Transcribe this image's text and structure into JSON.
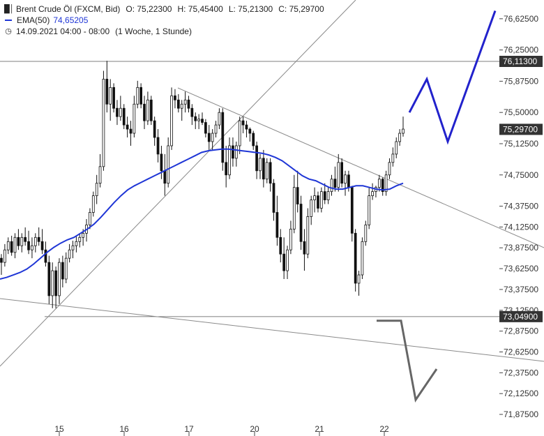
{
  "header": {
    "instrument": "Brent Crude Öl (FXCM, Bid)",
    "open": "O: 75,22300",
    "high": "H: 75,45400",
    "low": "L: 75,21300",
    "close": "C: 75,29700",
    "ema_label": "EMA(50)",
    "ema_value": "74,65205",
    "date_range": "14.09.2021 04:00 - 08:00",
    "period": "(1 Woche, 1 Stunde)"
  },
  "colors": {
    "candle": "#111111",
    "ema": "#1f36d6",
    "trend_lines": "#8a8a8a",
    "horizontal_lines": "#555555",
    "bull_arrow": "#2222cc",
    "bear_arrow": "#666666",
    "price_tag": "#333333"
  },
  "chart_data": {
    "type": "candlestick",
    "ylim": [
      71.8,
      76.85
    ],
    "y_ticks": [
      "76,62500",
      "76,25000",
      "75,87500",
      "75,50000",
      "75,12500",
      "74,75000",
      "74,37500",
      "74,12500",
      "73,87500",
      "73,62500",
      "73,37500",
      "73,12500",
      "72,87500",
      "72,62500",
      "72,37500",
      "72,12500",
      "71,87500"
    ],
    "x_labels": [
      "15",
      "16",
      "17",
      "20",
      "21",
      "22"
    ],
    "price_tags": {
      "resistance": "76,11300",
      "last": "75,29700",
      "support": "73,04900"
    },
    "levels": {
      "resistance": 76.113,
      "last": 75.297,
      "support": 73.049
    },
    "candles_ohlc": [
      [
        73.75,
        73.8,
        73.55,
        73.7
      ],
      [
        73.7,
        73.92,
        73.65,
        73.85
      ],
      [
        73.85,
        74.0,
        73.8,
        73.95
      ],
      [
        73.95,
        74.02,
        73.78,
        73.82
      ],
      [
        73.82,
        74.05,
        73.75,
        74.0
      ],
      [
        74.0,
        74.1,
        73.85,
        73.9
      ],
      [
        73.9,
        74.05,
        73.82,
        74.0
      ],
      [
        74.0,
        74.12,
        73.9,
        73.95
      ],
      [
        73.95,
        74.08,
        73.8,
        73.85
      ],
      [
        73.85,
        74.0,
        73.75,
        73.9
      ],
      [
        73.9,
        74.05,
        73.82,
        74.0
      ],
      [
        74.0,
        74.12,
        73.9,
        73.95
      ],
      [
        73.95,
        74.1,
        73.8,
        73.85
      ],
      [
        73.85,
        73.95,
        73.65,
        73.7
      ],
      [
        73.7,
        73.78,
        73.2,
        73.3
      ],
      [
        73.3,
        73.7,
        73.15,
        73.6
      ],
      [
        73.6,
        73.65,
        73.15,
        73.3
      ],
      [
        73.3,
        73.75,
        73.2,
        73.7
      ],
      [
        73.7,
        73.78,
        73.4,
        73.5
      ],
      [
        73.5,
        73.82,
        73.45,
        73.75
      ],
      [
        73.75,
        73.92,
        73.7,
        73.85
      ],
      [
        73.85,
        73.96,
        73.75,
        73.9
      ],
      [
        73.9,
        74.02,
        73.82,
        73.95
      ],
      [
        73.95,
        74.05,
        73.88,
        74.0
      ],
      [
        74.0,
        74.1,
        73.9,
        74.05
      ],
      [
        74.05,
        74.22,
        73.95,
        74.15
      ],
      [
        74.15,
        74.35,
        74.1,
        74.3
      ],
      [
        74.3,
        74.55,
        74.25,
        74.5
      ],
      [
        74.5,
        74.75,
        74.4,
        74.65
      ],
      [
        74.65,
        75.0,
        74.6,
        74.85
      ],
      [
        74.85,
        76.0,
        74.8,
        75.9
      ],
      [
        75.9,
        76.12,
        75.5,
        75.6
      ],
      [
        75.6,
        75.9,
        75.4,
        75.8
      ],
      [
        75.8,
        75.85,
        75.5,
        75.55
      ],
      [
        75.55,
        75.65,
        75.35,
        75.45
      ],
      [
        75.45,
        75.7,
        75.4,
        75.55
      ],
      [
        75.55,
        75.6,
        75.3,
        75.35
      ],
      [
        75.35,
        75.45,
        75.2,
        75.3
      ],
      [
        75.3,
        75.4,
        75.1,
        75.25
      ],
      [
        75.25,
        75.7,
        75.2,
        75.6
      ],
      [
        75.6,
        75.88,
        75.55,
        75.8
      ],
      [
        75.8,
        75.85,
        75.55,
        75.6
      ],
      [
        75.6,
        75.7,
        75.3,
        75.4
      ],
      [
        75.4,
        75.75,
        75.35,
        75.65
      ],
      [
        75.65,
        75.7,
        75.35,
        75.4
      ],
      [
        75.4,
        75.45,
        75.1,
        75.2
      ],
      [
        75.2,
        75.3,
        74.9,
        75.0
      ],
      [
        75.0,
        75.1,
        74.7,
        74.8
      ],
      [
        74.8,
        75.0,
        74.5,
        74.65
      ],
      [
        74.65,
        75.2,
        74.6,
        75.1
      ],
      [
        75.1,
        75.8,
        75.05,
        75.7
      ],
      [
        75.7,
        75.78,
        75.55,
        75.65
      ],
      [
        75.65,
        75.72,
        75.5,
        75.55
      ],
      [
        75.55,
        75.65,
        75.4,
        75.6
      ],
      [
        75.6,
        75.75,
        75.5,
        75.65
      ],
      [
        75.65,
        75.7,
        75.5,
        75.55
      ],
      [
        75.55,
        75.6,
        75.35,
        75.45
      ],
      [
        75.45,
        75.5,
        75.3,
        75.4
      ],
      [
        75.4,
        75.48,
        75.3,
        75.42
      ],
      [
        75.42,
        75.5,
        75.35,
        75.38
      ],
      [
        75.38,
        75.42,
        75.2,
        75.25
      ],
      [
        75.25,
        75.35,
        75.05,
        75.15
      ],
      [
        75.15,
        75.3,
        75.05,
        75.25
      ],
      [
        75.25,
        75.4,
        75.2,
        75.35
      ],
      [
        75.35,
        75.55,
        75.3,
        75.5
      ],
      [
        75.5,
        75.55,
        74.8,
        74.9
      ],
      [
        74.9,
        75.1,
        74.6,
        74.75
      ],
      [
        74.75,
        75.2,
        74.7,
        75.1
      ],
      [
        75.1,
        75.2,
        74.85,
        74.95
      ],
      [
        74.95,
        75.15,
        74.85,
        75.1
      ],
      [
        75.1,
        75.45,
        75.0,
        75.4
      ],
      [
        75.4,
        75.45,
        75.25,
        75.35
      ],
      [
        75.35,
        75.4,
        75.2,
        75.3
      ],
      [
        75.3,
        75.32,
        75.15,
        75.25
      ],
      [
        75.25,
        75.28,
        75.05,
        75.1
      ],
      [
        75.1,
        75.15,
        74.7,
        74.8
      ],
      [
        74.8,
        75.0,
        74.7,
        74.95
      ],
      [
        74.95,
        75.05,
        74.6,
        74.7
      ],
      [
        74.7,
        74.95,
        74.65,
        74.9
      ],
      [
        74.9,
        74.95,
        74.55,
        74.65
      ],
      [
        74.65,
        74.7,
        74.2,
        74.3
      ],
      [
        74.3,
        74.5,
        73.9,
        74.0
      ],
      [
        74.0,
        74.1,
        73.7,
        73.8
      ],
      [
        73.8,
        74.0,
        73.5,
        73.6
      ],
      [
        73.6,
        73.9,
        73.5,
        73.85
      ],
      [
        73.85,
        74.2,
        73.8,
        74.1
      ],
      [
        74.1,
        74.75,
        74.05,
        74.6
      ],
      [
        74.6,
        74.8,
        74.3,
        74.4
      ],
      [
        74.4,
        74.5,
        73.85,
        73.95
      ],
      [
        73.95,
        74.1,
        73.6,
        73.8
      ],
      [
        73.8,
        74.35,
        73.75,
        74.25
      ],
      [
        74.25,
        74.5,
        74.15,
        74.45
      ],
      [
        74.45,
        74.6,
        74.3,
        74.5
      ],
      [
        74.5,
        74.55,
        74.3,
        74.35
      ],
      [
        74.35,
        74.6,
        74.3,
        74.55
      ],
      [
        74.55,
        74.65,
        74.4,
        74.45
      ],
      [
        74.45,
        74.6,
        74.4,
        74.55
      ],
      [
        74.55,
        74.75,
        74.5,
        74.7
      ],
      [
        74.7,
        74.85,
        74.55,
        74.6
      ],
      [
        74.6,
        75.0,
        74.55,
        74.9
      ],
      [
        74.9,
        74.95,
        74.6,
        74.65
      ],
      [
        74.65,
        74.8,
        74.5,
        74.75
      ],
      [
        74.75,
        74.8,
        74.55,
        74.6
      ],
      [
        74.6,
        74.62,
        73.95,
        74.05
      ],
      [
        74.05,
        74.1,
        73.35,
        73.45
      ],
      [
        73.45,
        73.6,
        73.3,
        73.55
      ],
      [
        73.55,
        74.0,
        73.5,
        73.95
      ],
      [
        73.95,
        74.2,
        73.9,
        74.15
      ],
      [
        74.15,
        74.6,
        74.1,
        74.5
      ],
      [
        74.5,
        74.65,
        74.45,
        74.55
      ],
      [
        74.55,
        74.62,
        74.48,
        74.6
      ],
      [
        74.6,
        74.75,
        74.55,
        74.7
      ],
      [
        74.7,
        74.72,
        74.5,
        74.55
      ],
      [
        74.55,
        74.8,
        74.5,
        74.75
      ],
      [
        74.75,
        74.95,
        74.7,
        74.9
      ],
      [
        74.9,
        75.08,
        74.85,
        75.0
      ],
      [
        75.0,
        75.2,
        74.95,
        75.15
      ],
      [
        75.15,
        75.3,
        75.1,
        75.25
      ],
      [
        75.25,
        75.45,
        75.21,
        75.3
      ]
    ],
    "ema_values": [
      73.5,
      73.52,
      73.55,
      73.58,
      73.62,
      73.68,
      73.75,
      73.82,
      73.88,
      73.93,
      73.97,
      74.0,
      74.05,
      74.1,
      74.16,
      74.24,
      74.33,
      74.42,
      74.5,
      74.57,
      74.62,
      74.66,
      74.7,
      74.74,
      74.78,
      74.82,
      74.86,
      74.9,
      74.94,
      74.98,
      75.02,
      75.04,
      75.05,
      75.06,
      75.06,
      75.05,
      75.04,
      75.03,
      75.02,
      75.01,
      74.99,
      74.96,
      74.92,
      74.86,
      74.8,
      74.74,
      74.7,
      74.68,
      74.64,
      74.6,
      74.58,
      74.58,
      74.6,
      74.62,
      74.62,
      74.6,
      74.58,
      74.57,
      74.58,
      74.62,
      74.65
    ],
    "projection_up": [
      75.5,
      75.9,
      75.15,
      76.72
    ],
    "projection_down": [
      73.0,
      73.0,
      72.05,
      72.42
    ]
  }
}
